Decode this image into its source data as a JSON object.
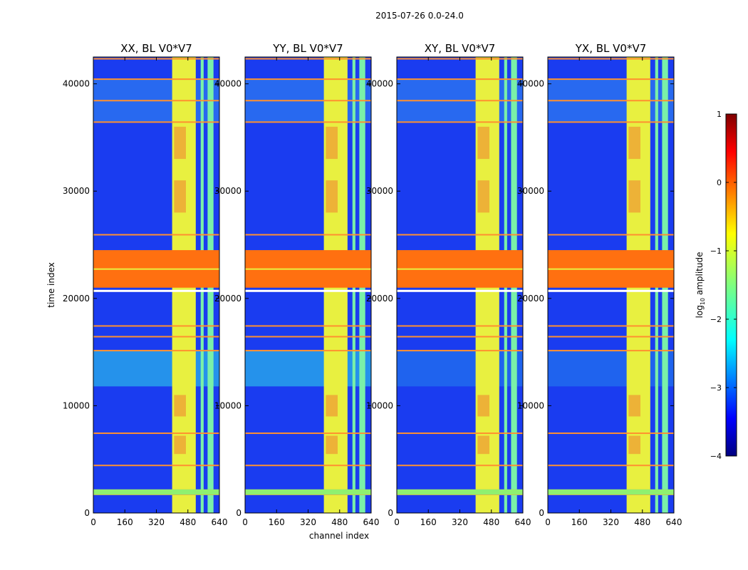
{
  "figure": {
    "suptitle": "2015-07-26 0.0-24.0",
    "xlabel": "channel index",
    "ylabel": "time index"
  },
  "chart_data": {
    "type": "heatmap",
    "description_scale": "log10 amplitude",
    "panels": [
      {
        "title": "XX, BL V0*V7",
        "polarization": "XX"
      },
      {
        "title": "YY, BL V0*V7",
        "polarization": "YY"
      },
      {
        "title": "XY, BL V0*V7",
        "polarization": "XY"
      },
      {
        "title": "YX, BL V0*V7",
        "polarization": "YX"
      }
    ],
    "xlim": [
      0,
      640
    ],
    "ylim": [
      0,
      42500
    ],
    "x_ticks": [
      0,
      160,
      320,
      480,
      640
    ],
    "x_tick_labels": [
      "0",
      "160",
      "320",
      "480",
      "640"
    ],
    "y_ticks": [
      0,
      10000,
      20000,
      30000,
      40000
    ],
    "y_tick_labels": [
      "0",
      "10000",
      "20000",
      "30000",
      "40000"
    ],
    "colorbar": {
      "label": "log10 amplitude",
      "label_prefix": "log",
      "label_sub": "10",
      "label_suffix": " amplitude",
      "range": [
        -4,
        1
      ],
      "ticks": [
        1,
        0,
        -1,
        -2,
        -3,
        -4
      ],
      "tick_labels": [
        "1",
        "0",
        "−1",
        "−2",
        "−3",
        "−4"
      ],
      "colormap": "jet"
    },
    "features": {
      "rfi_channel_bands": [
        [
          400,
          520
        ],
        [
          545,
          560
        ],
        [
          580,
          610
        ]
      ],
      "flagged_time_block": [
        21000,
        24500
      ],
      "bright_time_rows": [
        1800,
        2200,
        4500,
        7500,
        15200,
        16500,
        17500,
        26000,
        36500,
        38500,
        40500,
        42400
      ]
    }
  }
}
